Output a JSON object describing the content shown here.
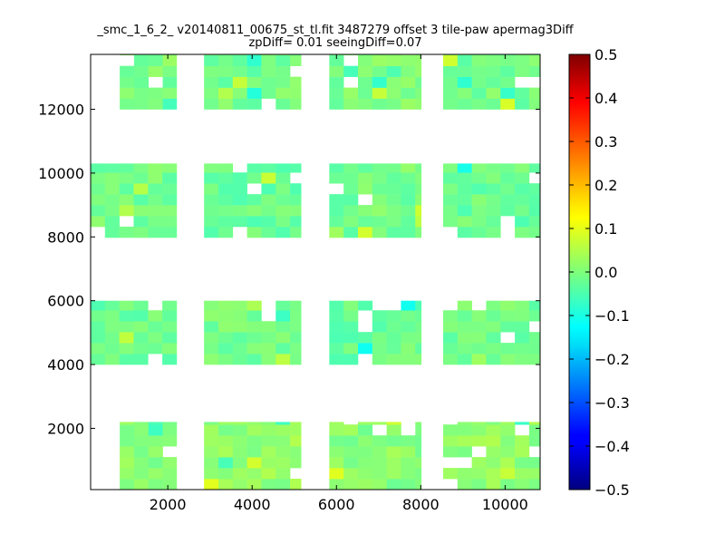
{
  "chart_data": {
    "type": "heatmap",
    "title": "_smc_1_6_2_ v20140811_00675_st_tl.fit 3487279 offset 3 tile-paw apermag3Diff",
    "subtitle": "zpDiff= 0.01 seeingDiff=0.07",
    "xlabel": "",
    "ylabel": "",
    "xlim": [
      170,
      10830
    ],
    "ylim": [
      80,
      13720
    ],
    "x_ticks": [
      2000,
      4000,
      6000,
      8000,
      10000
    ],
    "y_ticks": [
      2000,
      4000,
      6000,
      8000,
      10000,
      12000
    ],
    "colorbar": {
      "colormap": "jet",
      "vmin": -0.5,
      "vmax": 0.5,
      "ticks": [
        0.5,
        0.4,
        0.3,
        0.2,
        0.1,
        0.0,
        -0.1,
        -0.2,
        -0.3,
        -0.4,
        -0.5
      ],
      "tick_labels": [
        "0.5",
        "0.4",
        "0.3",
        "0.2",
        "0.1",
        "0.0",
        "−0.1",
        "−0.2",
        "−0.3",
        "−0.4",
        "−0.5"
      ]
    },
    "grid": false,
    "cell_size": 340,
    "blocks": [
      {
        "x_range": [
          860,
          2210
        ],
        "y_range": [
          80,
          2200
        ],
        "base_value": 0.01
      },
      {
        "x_range": [
          2860,
          5160
        ],
        "y_range": [
          80,
          2200
        ],
        "base_value": 0.02
      },
      {
        "x_range": [
          5830,
          8010
        ],
        "y_range": [
          80,
          2200
        ],
        "base_value": 0.01
      },
      {
        "x_range": [
          8530,
          10830
        ],
        "y_range": [
          80,
          2200
        ],
        "base_value": 0.02
      },
      {
        "x_range": [
          170,
          2210
        ],
        "y_range": [
          4000,
          6000
        ],
        "base_value": -0.02
      },
      {
        "x_range": [
          2860,
          5160
        ],
        "y_range": [
          4000,
          6000
        ],
        "base_value": -0.01
      },
      {
        "x_range": [
          5830,
          8010
        ],
        "y_range": [
          4000,
          6000
        ],
        "base_value": -0.02
      },
      {
        "x_range": [
          8530,
          10830
        ],
        "y_range": [
          4000,
          6000
        ],
        "base_value": -0.01
      },
      {
        "x_range": [
          170,
          2210
        ],
        "y_range": [
          7980,
          10300
        ],
        "base_value": -0.01
      },
      {
        "x_range": [
          2860,
          5160
        ],
        "y_range": [
          7980,
          10300
        ],
        "base_value": -0.02
      },
      {
        "x_range": [
          5830,
          8010
        ],
        "y_range": [
          7980,
          10300
        ],
        "base_value": -0.01
      },
      {
        "x_range": [
          8530,
          10830
        ],
        "y_range": [
          7980,
          10300
        ],
        "base_value": -0.02
      },
      {
        "x_range": [
          860,
          2210
        ],
        "y_range": [
          12000,
          13720
        ],
        "base_value": 0.0
      },
      {
        "x_range": [
          2860,
          5160
        ],
        "y_range": [
          12000,
          13720
        ],
        "base_value": -0.01
      },
      {
        "x_range": [
          5830,
          8010
        ],
        "y_range": [
          12000,
          13720
        ],
        "base_value": 0.0
      },
      {
        "x_range": [
          8530,
          10830
        ],
        "y_range": [
          12000,
          13720
        ],
        "base_value": -0.01
      }
    ]
  }
}
